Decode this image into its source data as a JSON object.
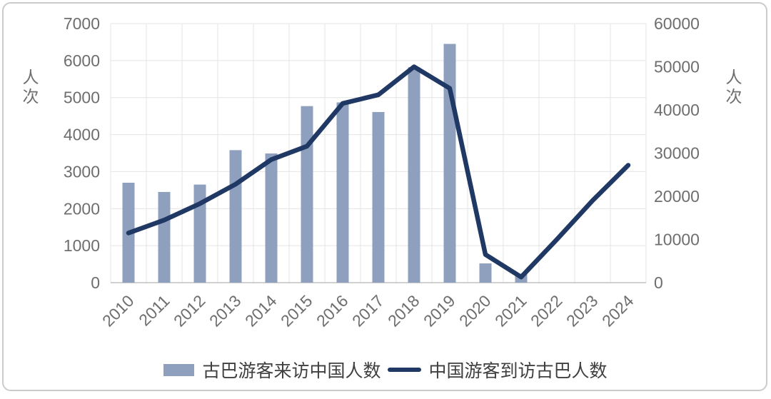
{
  "chart_data": {
    "type": "combo",
    "title": "",
    "categories": [
      "2010",
      "2011",
      "2012",
      "2013",
      "2014",
      "2015",
      "2016",
      "2017",
      "2018",
      "2019",
      "2020",
      "2021",
      "2022",
      "2023",
      "2024"
    ],
    "series": [
      {
        "name": "古巴游客来访中国人数",
        "type": "bar",
        "axis": "left",
        "values": [
          2700,
          2450,
          2650,
          3580,
          3490,
          4770,
          4870,
          4610,
          5820,
          6450,
          520,
          240,
          null,
          null,
          null
        ]
      },
      {
        "name": "中国游客到访古巴人数",
        "type": "line",
        "axis": "right",
        "values": [
          11500,
          14500,
          18300,
          22800,
          28500,
          31600,
          41500,
          43500,
          50000,
          45000,
          6500,
          1300,
          10000,
          19000,
          27200
        ]
      }
    ],
    "left_axis": {
      "title": "人次",
      "min": 0,
      "max": 7000,
      "step": 1000,
      "ticks": [
        0,
        1000,
        2000,
        3000,
        4000,
        5000,
        6000,
        7000
      ]
    },
    "right_axis": {
      "title": "人次",
      "min": 0,
      "max": 60000,
      "step": 10000,
      "ticks": [
        0,
        10000,
        20000,
        30000,
        40000,
        50000,
        60000
      ]
    },
    "grid": {
      "horizontal": true,
      "vertical": true
    },
    "legend_position": "bottom"
  },
  "colors": {
    "bar": "#8EA0BE",
    "line": "#1F3864",
    "grid": "#E4E4E4",
    "axis_line": "#C0C0C0",
    "tick_text": "#6E6E6E",
    "legend_text": "#3F3F3F",
    "border": "#CBCBCB",
    "background": "#FFFFFF"
  }
}
